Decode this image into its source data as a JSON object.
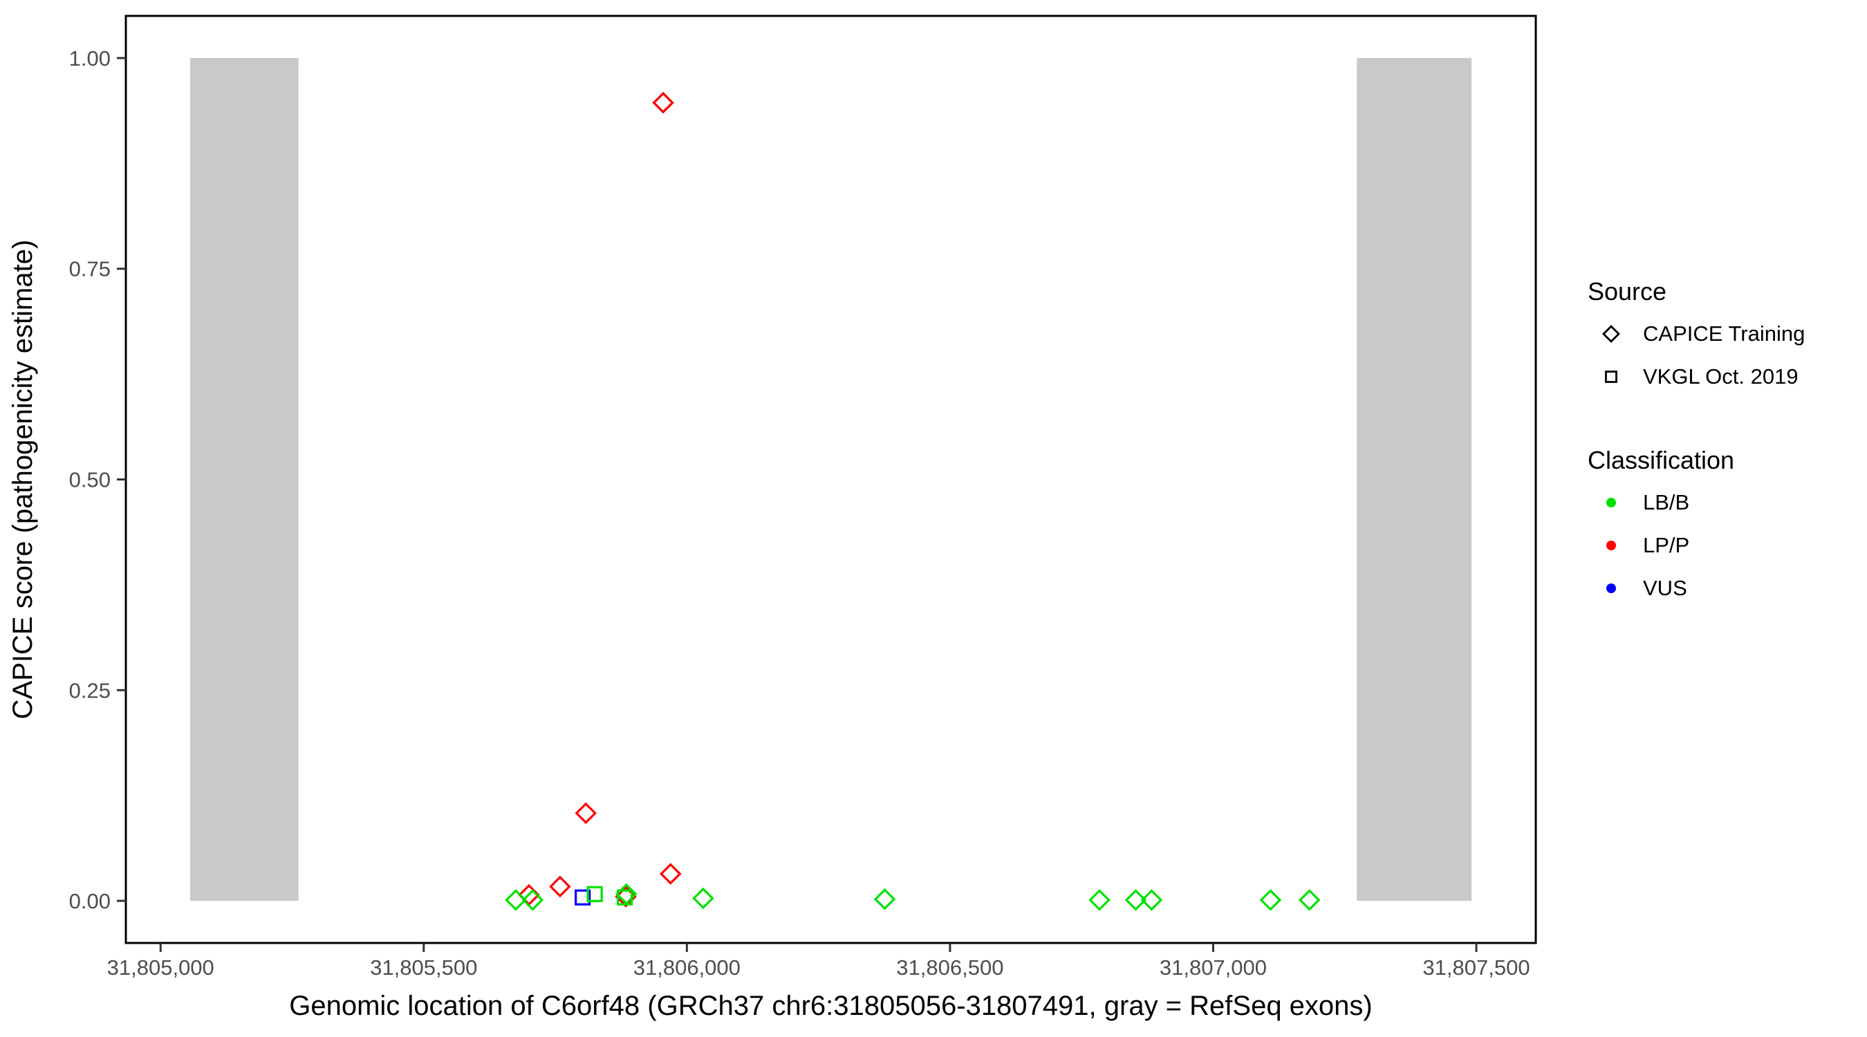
{
  "chart_data": {
    "type": "scatter",
    "xlabel": "Genomic location of C6orf48 (GRCh37 chr6:31805056-31807491, gray = RefSeq exons)",
    "ylabel": "CAPICE score (pathogenicity estimate)",
    "xlim": [
      31804934,
      31807613
    ],
    "ylim": [
      -0.05,
      1.05
    ],
    "grid": "off",
    "x_ticks": [
      {
        "value": 31805000,
        "label": "31,805,000"
      },
      {
        "value": 31805500,
        "label": "31,805,500"
      },
      {
        "value": 31806000,
        "label": "31,806,000"
      },
      {
        "value": 31806500,
        "label": "31,806,500"
      },
      {
        "value": 31807000,
        "label": "31,807,000"
      },
      {
        "value": 31807500,
        "label": "31,807,500"
      }
    ],
    "y_ticks": [
      {
        "value": 0.0,
        "label": "0.00"
      },
      {
        "value": 0.25,
        "label": "0.25"
      },
      {
        "value": 0.5,
        "label": "0.50"
      },
      {
        "value": 0.75,
        "label": "0.75"
      },
      {
        "value": 1.0,
        "label": "1.00"
      }
    ],
    "exon_color": "#c9c9c9",
    "exons": [
      {
        "start": 31805056,
        "end": 31805262
      },
      {
        "start": 31807273,
        "end": 31807491
      }
    ],
    "class_colors": {
      "LB/B": "#00e000",
      "LP/P": "#ff0000",
      "VUS": "#0000ff"
    },
    "source_shapes": {
      "CAPICE Training": "diamond",
      "VKGL Oct. 2019": "square"
    },
    "points": [
      {
        "x": 31805700,
        "y": 0.007,
        "source": "CAPICE Training",
        "class": "LP/P"
      },
      {
        "x": 31805759,
        "y": 0.017,
        "source": "CAPICE Training",
        "class": "LP/P"
      },
      {
        "x": 31805808,
        "y": 0.104,
        "source": "CAPICE Training",
        "class": "LP/P"
      },
      {
        "x": 31805884,
        "y": 0.005,
        "source": "CAPICE Training",
        "class": "LP/P"
      },
      {
        "x": 31805955,
        "y": 0.947,
        "source": "CAPICE Training",
        "class": "LP/P"
      },
      {
        "x": 31805969,
        "y": 0.032,
        "source": "CAPICE Training",
        "class": "LP/P"
      },
      {
        "x": 31805802,
        "y": 0.004,
        "source": "VKGL Oct. 2019",
        "class": "VUS"
      },
      {
        "x": 31805825,
        "y": 0.008,
        "source": "VKGL Oct. 2019",
        "class": "LB/B"
      },
      {
        "x": 31805882,
        "y": 0.004,
        "source": "VKGL Oct. 2019",
        "class": "LB/B"
      },
      {
        "x": 31805675,
        "y": 0.001,
        "source": "CAPICE Training",
        "class": "LB/B"
      },
      {
        "x": 31805707,
        "y": 0.001,
        "source": "CAPICE Training",
        "class": "LB/B"
      },
      {
        "x": 31805885,
        "y": 0.008,
        "source": "CAPICE Training",
        "class": "LB/B"
      },
      {
        "x": 31806031,
        "y": 0.003,
        "source": "CAPICE Training",
        "class": "LB/B"
      },
      {
        "x": 31806376,
        "y": 0.002,
        "source": "CAPICE Training",
        "class": "LB/B"
      },
      {
        "x": 31806784,
        "y": 0.001,
        "source": "CAPICE Training",
        "class": "LB/B"
      },
      {
        "x": 31806853,
        "y": 0.001,
        "source": "CAPICE Training",
        "class": "LB/B"
      },
      {
        "x": 31806883,
        "y": 0.001,
        "source": "CAPICE Training",
        "class": "LB/B"
      },
      {
        "x": 31807109,
        "y": 0.001,
        "source": "CAPICE Training",
        "class": "LB/B"
      },
      {
        "x": 31807183,
        "y": 0.001,
        "source": "CAPICE Training",
        "class": "LB/B"
      }
    ]
  },
  "legend": {
    "source_title": "Source",
    "source_items": [
      {
        "label": "CAPICE Training",
        "shape": "diamond"
      },
      {
        "label": "VKGL Oct. 2019",
        "shape": "square"
      }
    ],
    "class_title": "Classification",
    "class_items": [
      {
        "label": "LB/B",
        "color": "#00e000"
      },
      {
        "label": "LP/P",
        "color": "#ff0000"
      },
      {
        "label": "VUS",
        "color": "#0000ff"
      }
    ]
  }
}
